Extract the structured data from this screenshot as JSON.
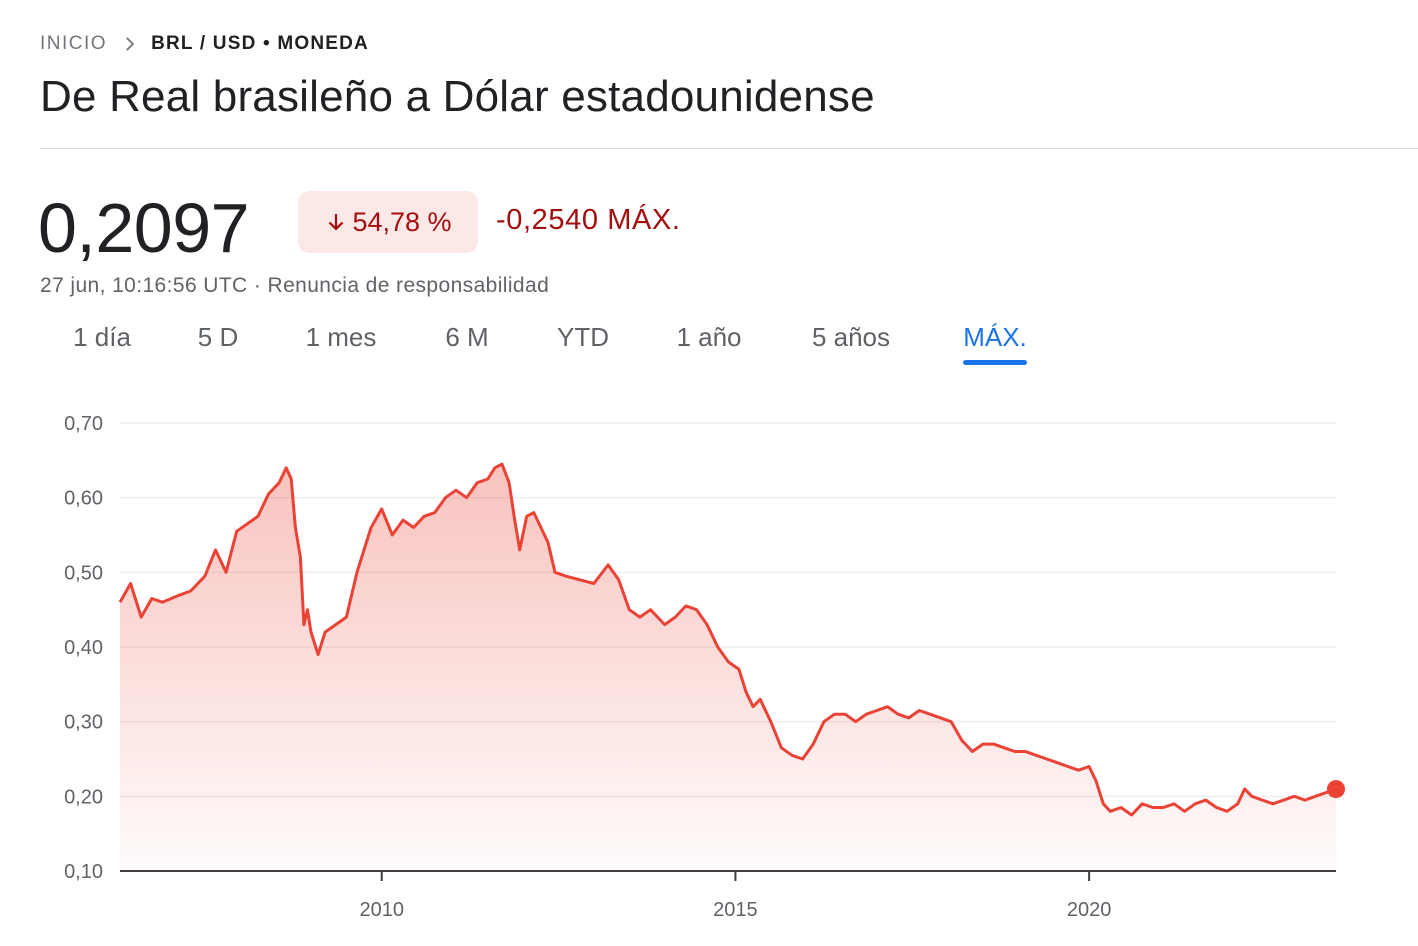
{
  "breadcrumb": {
    "home": "INICIO",
    "current": "BRL / USD • MONEDA"
  },
  "title": "De Real brasileño a Dólar estadounidense",
  "quote": {
    "price": "0,2097",
    "change_percent": "54,78 %",
    "change_direction": "down",
    "change_absolute": "-0,2540 MÁX."
  },
  "meta": {
    "timestamp": "27 jun, 10:16:56 UTC",
    "separator": " · ",
    "disclaimer": "Renuncia de responsabilidad"
  },
  "tabs": [
    {
      "label": "1 día",
      "active": false
    },
    {
      "label": "5 D",
      "active": false
    },
    {
      "label": "1 mes",
      "active": false
    },
    {
      "label": "6 M",
      "active": false
    },
    {
      "label": "YTD",
      "active": false
    },
    {
      "label": "1 año",
      "active": false
    },
    {
      "label": "5 años",
      "active": false
    },
    {
      "label": "MÁX.",
      "active": true
    }
  ],
  "colors": {
    "series": "#ea4335",
    "negative": "#a50e0e",
    "badge_bg": "#fce8e6",
    "active_tab": "#1a73e8"
  },
  "icons": {
    "breadcrumb_separator": "chevron-right-icon",
    "change": "arrow-down-icon"
  },
  "chart_data": {
    "type": "area",
    "title": "",
    "xlabel": "",
    "ylabel": "",
    "ylim": [
      0.1,
      0.7
    ],
    "xlim": [
      2006.3,
      2023.49
    ],
    "y_ticks": [
      "0,70",
      "0,60",
      "0,50",
      "0,40",
      "0,30",
      "0,20",
      "0,10"
    ],
    "x_ticks": [
      {
        "value": 2010,
        "label": "2010"
      },
      {
        "value": 2015,
        "label": "2015"
      },
      {
        "value": 2020,
        "label": "2020"
      }
    ],
    "grid": true,
    "series": [
      {
        "x": [
          2006.3,
          2006.45,
          2006.6,
          2006.75,
          2006.9,
          2007.1,
          2007.3,
          2007.5,
          2007.65,
          2007.8,
          2007.95,
          2008.1,
          2008.25,
          2008.4,
          2008.55,
          2008.65,
          2008.72,
          2008.78,
          2008.85,
          2008.9,
          2008.95,
          2009.0,
          2009.1,
          2009.2,
          2009.35,
          2009.5,
          2009.65,
          2009.75,
          2009.85,
          2010.0,
          2010.15,
          2010.3,
          2010.45,
          2010.6,
          2010.75,
          2010.9,
          2011.05,
          2011.2,
          2011.35,
          2011.5,
          2011.6,
          2011.7,
          2011.8,
          2011.88,
          2011.95,
          2012.05,
          2012.15,
          2012.25,
          2012.35,
          2012.45,
          2012.6,
          2012.8,
          2013.0,
          2013.2,
          2013.35,
          2013.5,
          2013.65,
          2013.8,
          2014.0,
          2014.15,
          2014.3,
          2014.45,
          2014.6,
          2014.75,
          2014.9,
          2015.05,
          2015.15,
          2015.25,
          2015.35,
          2015.5,
          2015.65,
          2015.8,
          2015.95,
          2016.1,
          2016.25,
          2016.4,
          2016.55,
          2016.7,
          2016.85,
          2017.0,
          2017.15,
          2017.3,
          2017.45,
          2017.6,
          2017.75,
          2017.9,
          2018.05,
          2018.2,
          2018.35,
          2018.5,
          2018.65,
          2018.8,
          2018.95,
          2019.1,
          2019.25,
          2019.4,
          2019.55,
          2019.7,
          2019.85,
          2020.0,
          2020.1,
          2020.2,
          2020.3,
          2020.45,
          2020.6,
          2020.75,
          2020.9,
          2021.05,
          2021.2,
          2021.35,
          2021.5,
          2021.65,
          2021.8,
          2021.95,
          2022.1,
          2022.2,
          2022.3,
          2022.45,
          2022.6,
          2022.75,
          2022.9,
          2023.05,
          2023.2,
          2023.35,
          2023.49
        ],
        "y": [
          0.46,
          0.485,
          0.44,
          0.465,
          0.46,
          0.468,
          0.475,
          0.495,
          0.53,
          0.5,
          0.555,
          0.565,
          0.575,
          0.605,
          0.62,
          0.64,
          0.625,
          0.56,
          0.52,
          0.43,
          0.45,
          0.42,
          0.39,
          0.42,
          0.43,
          0.44,
          0.5,
          0.53,
          0.56,
          0.585,
          0.55,
          0.57,
          0.56,
          0.575,
          0.58,
          0.6,
          0.61,
          0.6,
          0.62,
          0.625,
          0.64,
          0.645,
          0.62,
          0.57,
          0.53,
          0.575,
          0.58,
          0.56,
          0.54,
          0.5,
          0.495,
          0.49,
          0.485,
          0.51,
          0.49,
          0.45,
          0.44,
          0.45,
          0.43,
          0.44,
          0.455,
          0.45,
          0.43,
          0.4,
          0.38,
          0.37,
          0.34,
          0.32,
          0.33,
          0.3,
          0.265,
          0.255,
          0.25,
          0.27,
          0.3,
          0.31,
          0.31,
          0.3,
          0.31,
          0.315,
          0.32,
          0.31,
          0.305,
          0.315,
          0.31,
          0.305,
          0.3,
          0.275,
          0.26,
          0.27,
          0.27,
          0.265,
          0.26,
          0.26,
          0.255,
          0.25,
          0.245,
          0.24,
          0.235,
          0.24,
          0.22,
          0.19,
          0.18,
          0.185,
          0.175,
          0.19,
          0.185,
          0.185,
          0.19,
          0.18,
          0.19,
          0.195,
          0.185,
          0.18,
          0.19,
          0.21,
          0.2,
          0.195,
          0.19,
          0.195,
          0.2,
          0.195,
          0.2,
          0.205,
          0.21
        ]
      }
    ],
    "last_point": {
      "x": 2023.49,
      "y": 0.2097
    }
  }
}
